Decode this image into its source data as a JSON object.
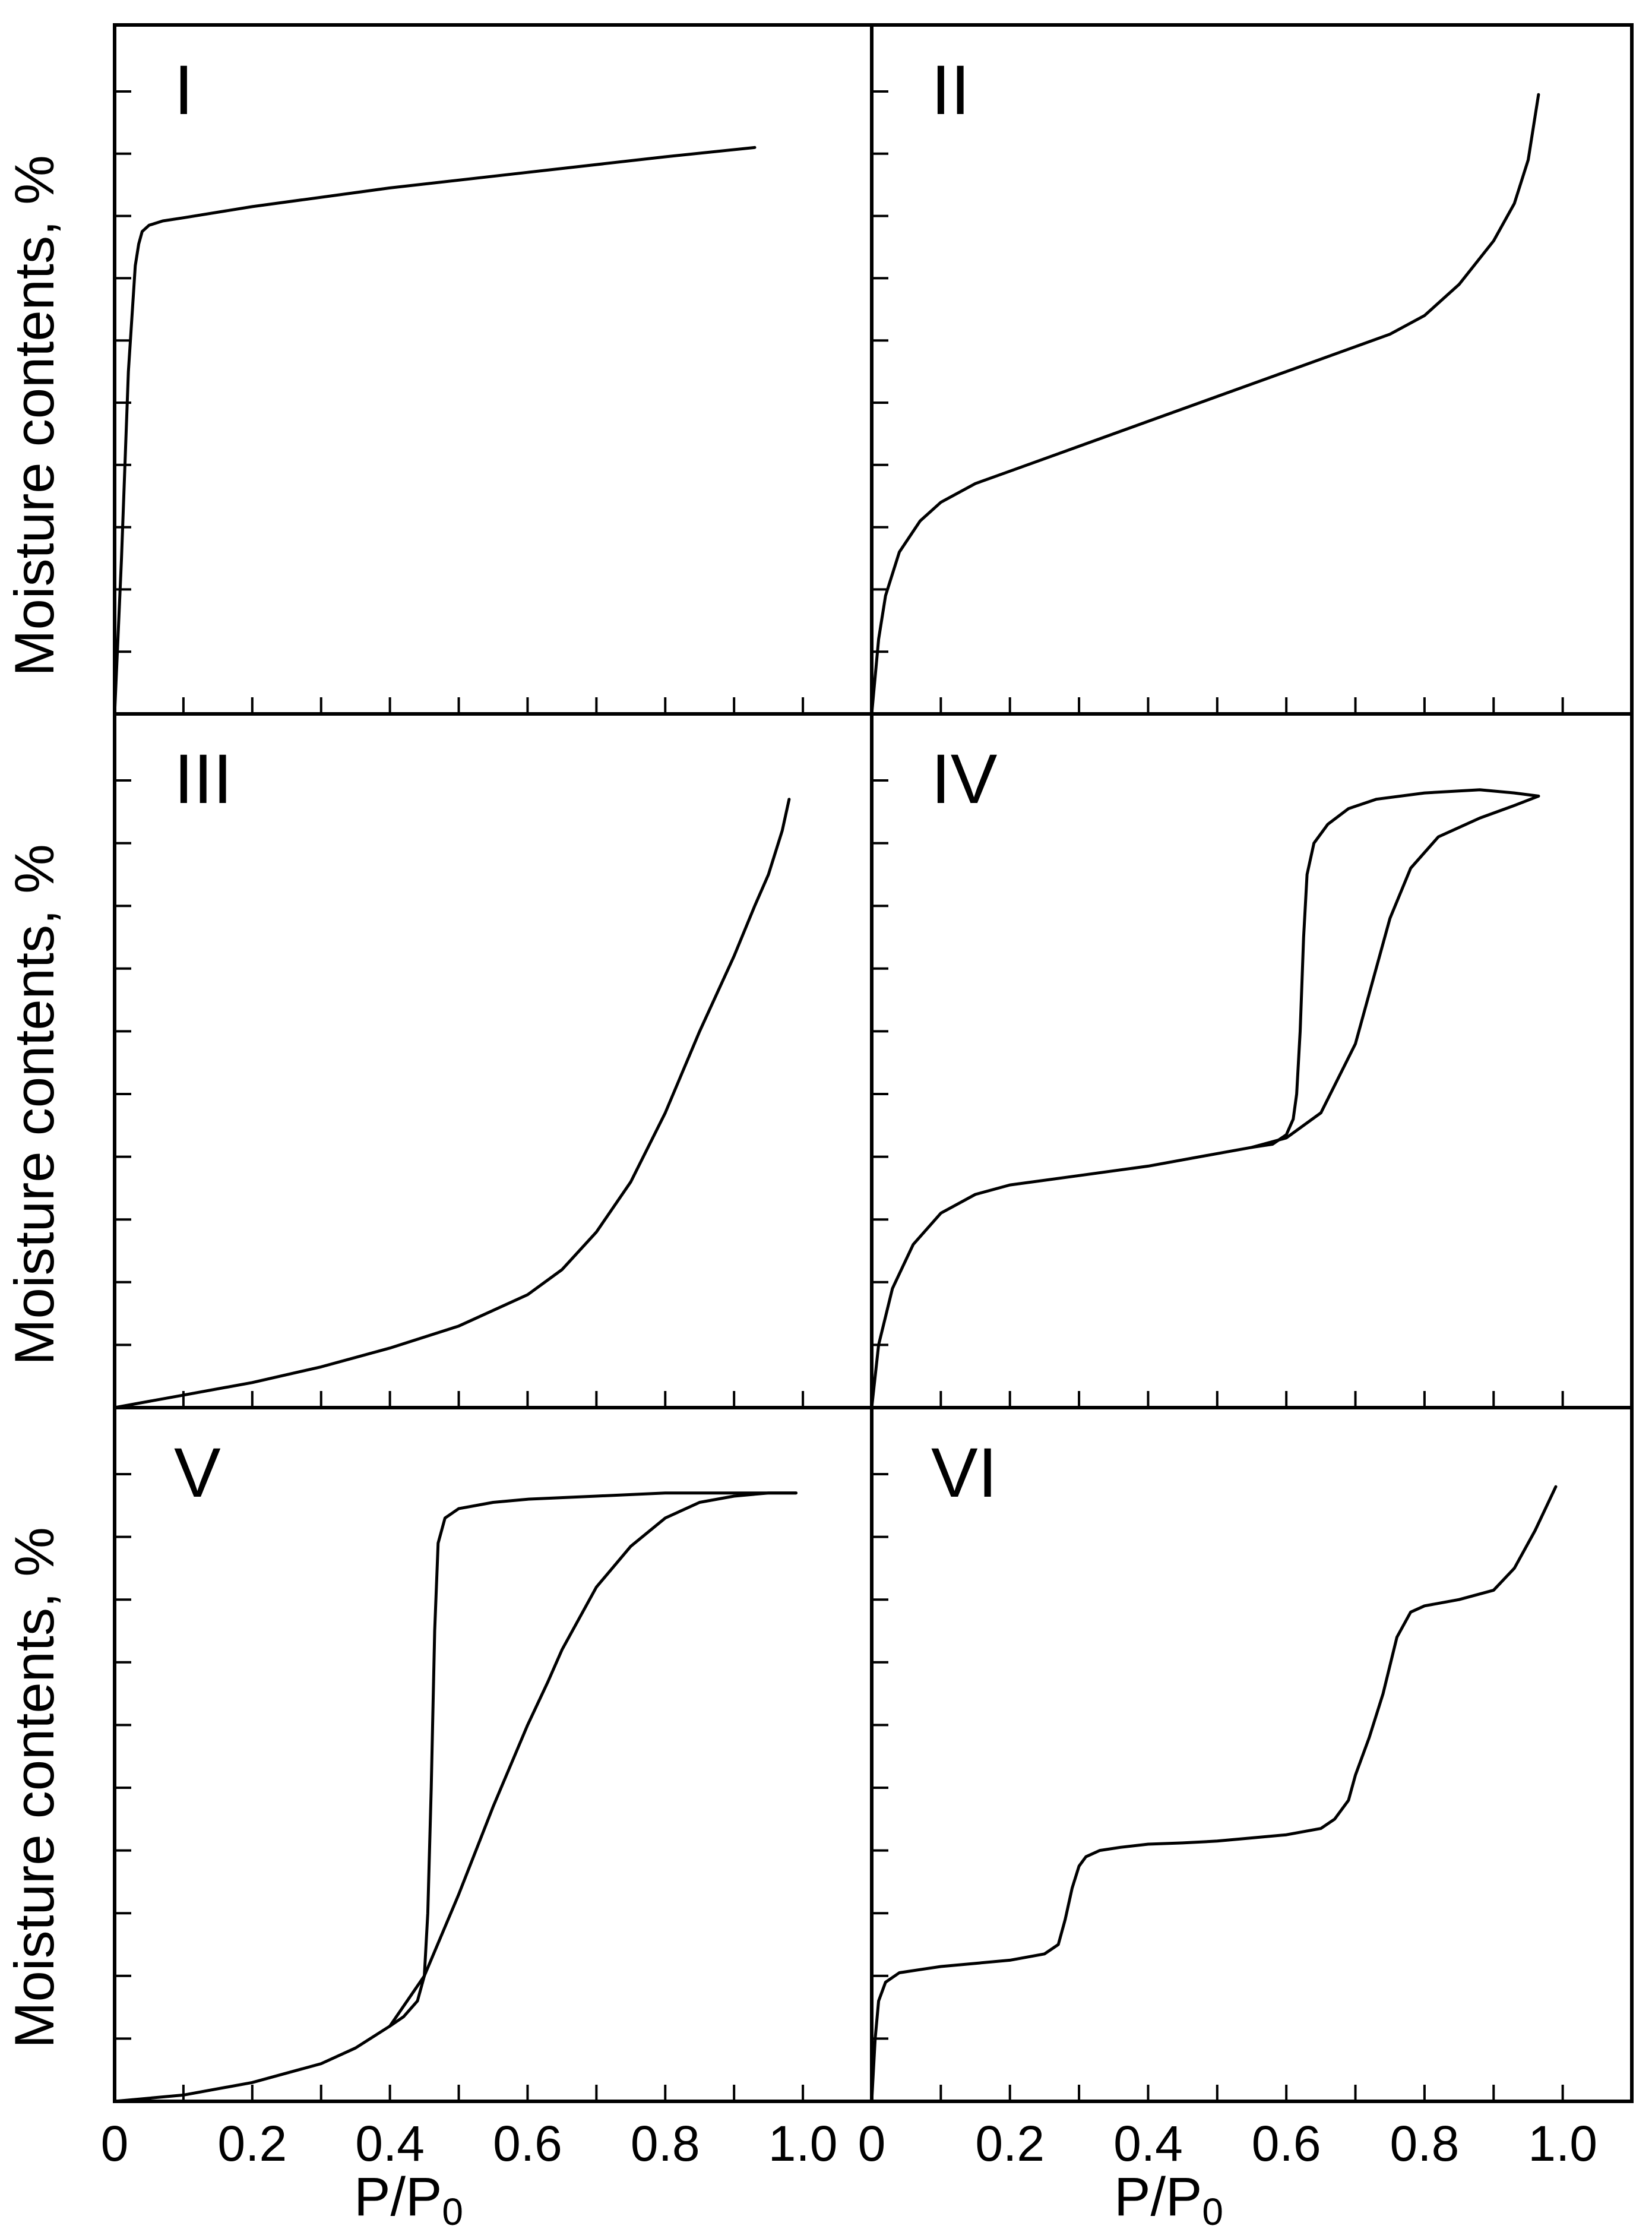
{
  "figure": {
    "y_axis_label": "Moisture contents, %",
    "x_axis_label_main": "P/P",
    "x_axis_label_sub": "0",
    "x_tick_labels": [
      "0",
      "0.2",
      "0.4",
      "0.6",
      "0.8",
      "1.0"
    ]
  },
  "chart_data": [
    {
      "type": "line",
      "panel": "I",
      "title": "I",
      "xlabel": "",
      "ylabel": "Moisture contents, %",
      "xlim": [
        0,
        1.1
      ],
      "ylim": [
        0,
        10
      ],
      "grid": false,
      "series": [
        {
          "x": [
            0.0,
            0.01,
            0.02,
            0.03,
            0.035,
            0.04,
            0.05,
            0.07,
            0.1,
            0.2,
            0.4,
            0.6,
            0.8,
            0.93
          ],
          "y": [
            0.0,
            2.5,
            5.5,
            7.2,
            7.55,
            7.75,
            7.85,
            7.92,
            7.97,
            8.15,
            8.45,
            8.7,
            8.95,
            9.1
          ]
        }
      ]
    },
    {
      "type": "line",
      "panel": "II",
      "title": "II",
      "xlabel": "",
      "ylabel": "",
      "xlim": [
        0,
        1.1
      ],
      "ylim": [
        0,
        10
      ],
      "grid": false,
      "series": [
        {
          "x": [
            0.0,
            0.01,
            0.02,
            0.04,
            0.07,
            0.1,
            0.15,
            0.2,
            0.3,
            0.4,
            0.5,
            0.6,
            0.7,
            0.75,
            0.8,
            0.85,
            0.9,
            0.93,
            0.95,
            0.96,
            0.965
          ],
          "y": [
            0.0,
            1.2,
            1.9,
            2.6,
            3.1,
            3.4,
            3.7,
            3.9,
            4.3,
            4.7,
            5.1,
            5.5,
            5.9,
            6.1,
            6.4,
            6.9,
            7.6,
            8.2,
            8.9,
            9.6,
            9.95
          ]
        }
      ]
    },
    {
      "type": "line",
      "panel": "III",
      "title": "III",
      "xlabel": "",
      "ylabel": "Moisture contents, %",
      "xlim": [
        0,
        1.1
      ],
      "ylim": [
        0,
        10
      ],
      "grid": false,
      "series": [
        {
          "x": [
            0.0,
            0.1,
            0.2,
            0.3,
            0.4,
            0.5,
            0.6,
            0.65,
            0.7,
            0.75,
            0.8,
            0.85,
            0.9,
            0.93,
            0.95,
            0.97,
            0.98
          ],
          "y": [
            0.0,
            0.2,
            0.4,
            0.65,
            0.95,
            1.3,
            1.8,
            2.2,
            2.8,
            3.6,
            4.7,
            6.0,
            7.2,
            8.0,
            8.5,
            9.2,
            9.7
          ]
        }
      ]
    },
    {
      "type": "line",
      "panel": "IV",
      "title": "IV",
      "xlabel": "",
      "ylabel": "",
      "xlim": [
        0,
        1.1
      ],
      "ylim": [
        0,
        10
      ],
      "grid": false,
      "series": [
        {
          "name": "",
          "x": [
            0.0,
            0.01,
            0.03,
            0.06,
            0.1,
            0.15,
            0.2,
            0.3,
            0.4,
            0.5,
            0.55,
            0.6,
            0.65,
            0.7,
            0.72,
            0.75,
            0.78,
            0.82,
            0.88,
            0.93,
            0.965
          ],
          "y": [
            0.0,
            1.0,
            1.9,
            2.6,
            3.1,
            3.4,
            3.55,
            3.7,
            3.85,
            4.05,
            4.15,
            4.3,
            4.7,
            5.8,
            6.6,
            7.8,
            8.6,
            9.1,
            9.4,
            9.6,
            9.75
          ]
        },
        {
          "name": "",
          "x": [
            0.965,
            0.93,
            0.88,
            0.8,
            0.73,
            0.69,
            0.66,
            0.64,
            0.63,
            0.625,
            0.62,
            0.615,
            0.61,
            0.6,
            0.58,
            0.55
          ],
          "y": [
            9.75,
            9.8,
            9.85,
            9.8,
            9.7,
            9.55,
            9.3,
            9.0,
            8.5,
            7.5,
            6.0,
            5.0,
            4.6,
            4.35,
            4.2,
            4.15
          ]
        }
      ]
    },
    {
      "type": "line",
      "panel": "V",
      "title": "V",
      "xlabel": "P/P0",
      "ylabel": "Moisture contents, %",
      "xlim": [
        0,
        1.1
      ],
      "ylim": [
        0,
        10
      ],
      "grid": false,
      "series": [
        {
          "name": "",
          "x": [
            0.0,
            0.1,
            0.2,
            0.3,
            0.35,
            0.4,
            0.45,
            0.5,
            0.55,
            0.6,
            0.63,
            0.65,
            0.7,
            0.75,
            0.8,
            0.85,
            0.9,
            0.95,
            0.99
          ],
          "y": [
            0.0,
            0.1,
            0.3,
            0.6,
            0.85,
            1.2,
            2.0,
            3.3,
            4.7,
            6.0,
            6.7,
            7.2,
            8.2,
            8.85,
            9.3,
            9.55,
            9.65,
            9.7,
            9.7
          ]
        },
        {
          "name": "",
          "x": [
            0.99,
            0.9,
            0.8,
            0.7,
            0.6,
            0.55,
            0.5,
            0.48,
            0.47,
            0.465,
            0.46,
            0.455,
            0.45,
            0.44,
            0.42,
            0.4
          ],
          "y": [
            9.7,
            9.7,
            9.7,
            9.65,
            9.6,
            9.55,
            9.45,
            9.3,
            8.9,
            7.5,
            5.0,
            3.0,
            2.0,
            1.6,
            1.35,
            1.2
          ]
        }
      ]
    },
    {
      "type": "line",
      "panel": "VI",
      "title": "VI",
      "xlabel": "P/P0",
      "ylabel": "",
      "xlim": [
        0,
        1.1
      ],
      "ylim": [
        0,
        10
      ],
      "grid": false,
      "series": [
        {
          "x": [
            0.0,
            0.005,
            0.01,
            0.02,
            0.04,
            0.07,
            0.1,
            0.15,
            0.2,
            0.25,
            0.27,
            0.28,
            0.29,
            0.3,
            0.31,
            0.33,
            0.36,
            0.4,
            0.45,
            0.5,
            0.55,
            0.6,
            0.65,
            0.67,
            0.69,
            0.7,
            0.72,
            0.74,
            0.76,
            0.78,
            0.8,
            0.85,
            0.9,
            0.93,
            0.96,
            0.99
          ],
          "y": [
            0.0,
            1.0,
            1.6,
            1.9,
            2.05,
            2.1,
            2.15,
            2.2,
            2.25,
            2.35,
            2.5,
            2.9,
            3.4,
            3.75,
            3.9,
            4.0,
            4.05,
            4.1,
            4.12,
            4.15,
            4.2,
            4.25,
            4.35,
            4.5,
            4.8,
            5.2,
            5.8,
            6.5,
            7.4,
            7.8,
            7.9,
            8.0,
            8.15,
            8.5,
            9.1,
            9.8
          ]
        }
      ]
    }
  ]
}
